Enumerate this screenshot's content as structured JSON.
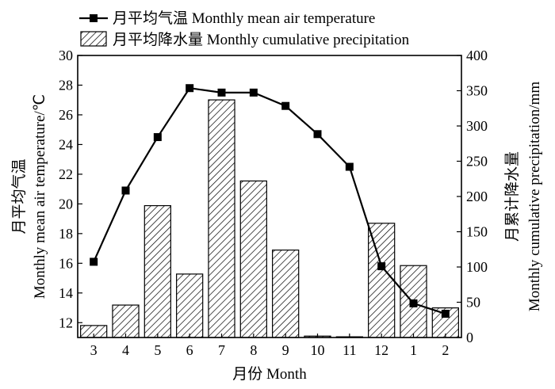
{
  "chart_data": {
    "type": "bar+line",
    "categories": [
      "3",
      "4",
      "5",
      "6",
      "7",
      "8",
      "9",
      "10",
      "11",
      "12",
      "1",
      "2"
    ],
    "series": [
      {
        "name": "月平均气温 Monthly mean air temperature",
        "type": "line",
        "axis": "left",
        "values": [
          16.1,
          20.9,
          24.5,
          27.8,
          27.5,
          27.5,
          26.6,
          24.7,
          22.5,
          15.8,
          13.3,
          12.6
        ]
      },
      {
        "name": "月平均降水量 Monthly cumulative precipitation",
        "type": "bar",
        "axis": "right",
        "values": [
          17,
          46,
          187,
          90,
          337,
          222,
          124,
          2,
          1,
          162,
          102,
          42
        ]
      }
    ],
    "xlabel": "月份 Month",
    "ylabel_left": [
      "月平均气温",
      "Monthly mean air temperature/℃"
    ],
    "ylabel_right": [
      "月累计降水量",
      "Monthly cumulative precipitation/mm"
    ],
    "ylim_left": [
      11,
      30
    ],
    "ylim_right": [
      0,
      400
    ],
    "yticks_left": [
      "12",
      "14",
      "16",
      "18",
      "20",
      "22",
      "24",
      "26",
      "28",
      "30"
    ],
    "yticks_right": [
      "0",
      "50",
      "100",
      "150",
      "200",
      "250",
      "300",
      "350",
      "400"
    ],
    "grid": false,
    "legend_position": "top-left"
  }
}
